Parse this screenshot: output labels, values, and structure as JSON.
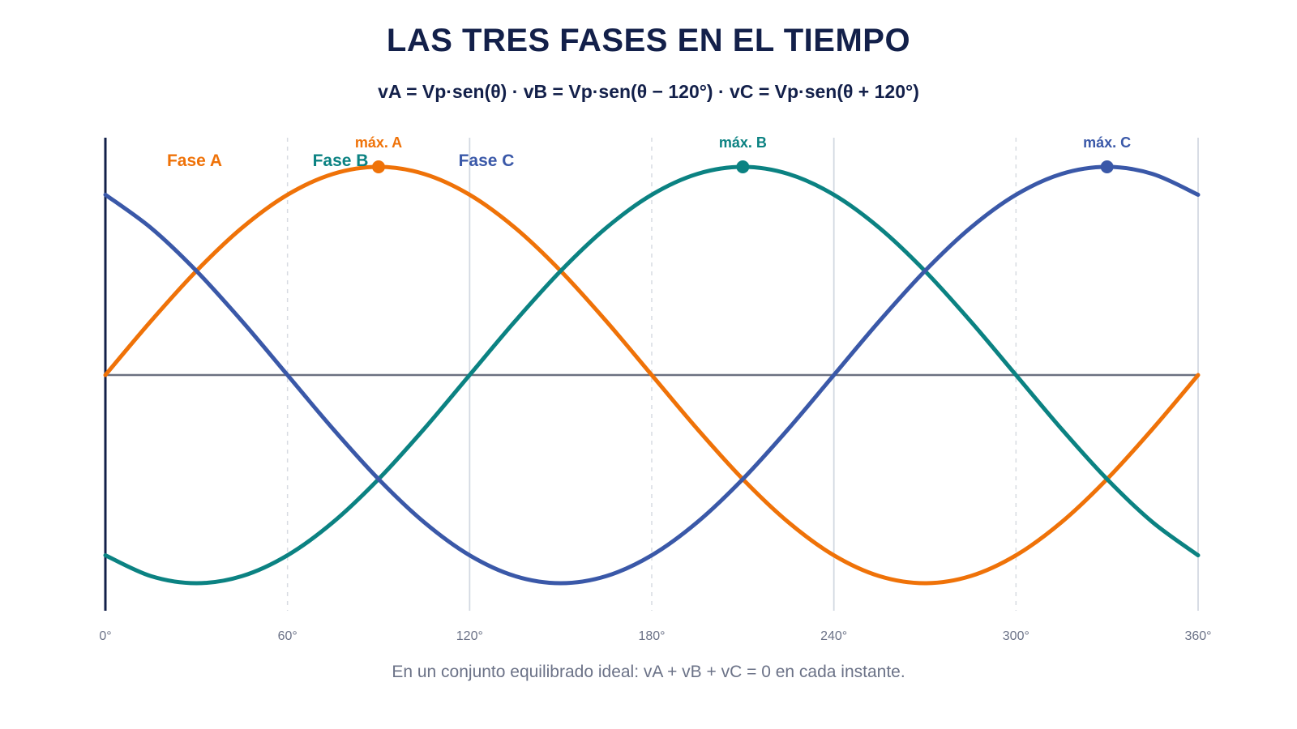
{
  "header": {
    "title": "LAS TRES FASES EN EL TIEMPO",
    "subtitle": "vA = Vp·sen(θ) · vB = Vp·sen(θ − 120°) · vC = Vp·sen(θ + 120°)"
  },
  "footnote": "En un conjunto equilibrado ideal: vA + vB + vC = 0 en cada instante.",
  "chart_data": {
    "type": "line",
    "title": "LAS TRES FASES EN EL TIEMPO",
    "xlabel": "",
    "ylabel": "",
    "xlim": [
      0,
      360
    ],
    "ylim": [
      -1.3,
      1.3
    ],
    "x_ticks": [
      0,
      60,
      120,
      180,
      240,
      300,
      360
    ],
    "x_tick_labels": [
      "0°",
      "60°",
      "120°",
      "180°",
      "240°",
      "300°",
      "360°"
    ],
    "grid": "vertical",
    "legend": "top-left",
    "x": [
      0,
      15,
      30,
      45,
      60,
      75,
      90,
      105,
      120,
      135,
      150,
      165,
      180,
      195,
      210,
      225,
      240,
      255,
      270,
      285,
      300,
      315,
      330,
      345,
      360
    ],
    "series": [
      {
        "name": "Fase A",
        "color": "#ef7208",
        "values": [
          0,
          0.259,
          0.5,
          0.707,
          0.866,
          0.966,
          1,
          0.966,
          0.866,
          0.707,
          0.5,
          0.259,
          0,
          -0.259,
          -0.5,
          -0.707,
          -0.866,
          -0.966,
          -1,
          -0.966,
          -0.866,
          -0.707,
          -0.5,
          -0.259,
          0
        ],
        "peak": {
          "x": 90,
          "y": 1,
          "label": "máx. A"
        }
      },
      {
        "name": "Fase B",
        "color": "#0b8282",
        "values": [
          -0.866,
          -0.966,
          -1,
          -0.966,
          -0.866,
          -0.707,
          -0.5,
          -0.259,
          0,
          0.259,
          0.5,
          0.707,
          0.866,
          0.966,
          1,
          0.966,
          0.866,
          0.707,
          0.5,
          0.259,
          0,
          -0.259,
          -0.5,
          -0.707,
          -0.866
        ],
        "peak": {
          "x": 210,
          "y": 1,
          "label": "máx. B"
        }
      },
      {
        "name": "Fase C",
        "color": "#3a58a8",
        "values": [
          0.866,
          0.707,
          0.5,
          0.259,
          0,
          -0.259,
          -0.5,
          -0.707,
          -0.866,
          -0.966,
          -1,
          -0.966,
          -0.866,
          -0.707,
          -0.5,
          -0.259,
          0,
          0.259,
          0.5,
          0.707,
          0.866,
          0.966,
          1,
          0.966,
          0.866
        ],
        "peak": {
          "x": 330,
          "y": 1,
          "label": "máx. C"
        }
      }
    ]
  }
}
